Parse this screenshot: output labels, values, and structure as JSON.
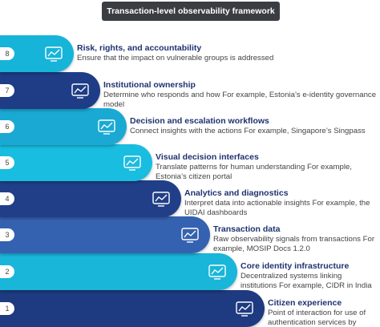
{
  "title": "Transaction-level observability framework",
  "layers": [
    {
      "number": "8",
      "title": "Risk, rights, and accountability",
      "description": "Ensure that the impact on vulnerable groups is addressed",
      "color": "#17b4d9"
    },
    {
      "number": "7",
      "title": "Institutional ownership",
      "description": "Determine who responds and how For example, Estonia’s e-identity governance model",
      "color": "#1f3c86"
    },
    {
      "number": "6",
      "title": "Decision and escalation workflows",
      "description": "Connect insights with the actions For example, Singapore’s Singpass",
      "color": "#1aa9d3"
    },
    {
      "number": "5",
      "title": "Visual decision interfaces",
      "description": "Translate patterns for human understanding For example, Estonia’s citizen portal",
      "color": "#19bde0"
    },
    {
      "number": "4",
      "title": "Analytics and diagnostics",
      "description": "Interpret data into actionable insights For example, the UIDAI dashboards",
      "color": "#213f88"
    },
    {
      "number": "3",
      "title": "Transaction data",
      "description": "Raw observability signals from transactions For example, MOSIP Docs 1.2.0",
      "color": "#3562b0"
    },
    {
      "number": "2",
      "title": "Core identity infrastructure",
      "description": "Decentralized systems linking institutions For example, CIDR in India",
      "color": "#19b6da"
    },
    {
      "number": "1",
      "title": "Citizen experience",
      "description": "Point of interaction for use of authentication services by citizens",
      "color": "#1e3a80"
    }
  ]
}
